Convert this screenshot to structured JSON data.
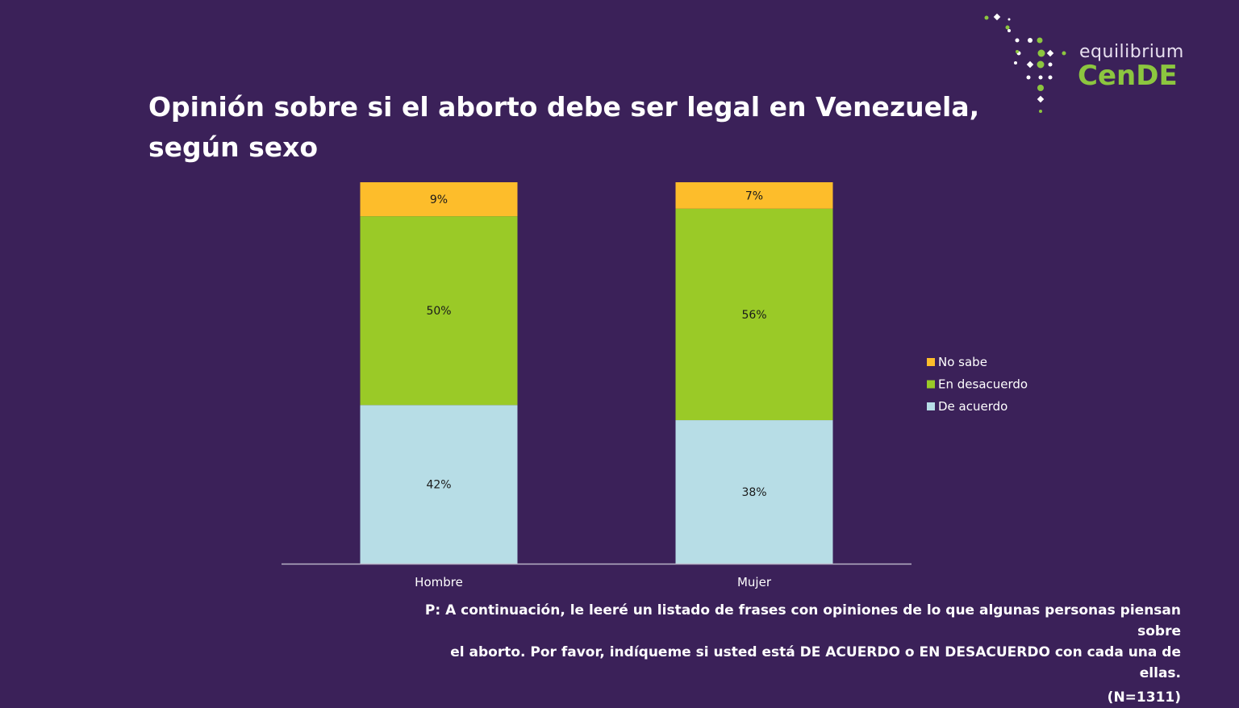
{
  "title_lines": [
    "Opinión sobre si el aborto debe ser legal en Venezuela,",
    "según sexo"
  ],
  "logo": {
    "word": "equilibrium",
    "brand": "CenDE",
    "colors": {
      "accent": "#8cc63f",
      "light": "#ffffff"
    }
  },
  "footnote": {
    "line1": "P: A continuación, le leeré un listado de frases con opiniones de lo que algunas personas piensan sobre",
    "line2": "el aborto. Por favor, indíqueme si usted está DE ACUERDO o EN DESACUERDO con cada una de ellas.",
    "sample": "(N=1311)"
  },
  "colors": {
    "background": "#3b2159"
  },
  "chart_data": {
    "type": "bar",
    "stacked": true,
    "categories": [
      "Hombre",
      "Mujer"
    ],
    "series": [
      {
        "name": "De acuerdo",
        "values": [
          42,
          38
        ],
        "labels": [
          "42%",
          "38%"
        ],
        "color": "#b7dde6"
      },
      {
        "name": "En desacuerdo",
        "values": [
          50,
          56
        ],
        "labels": [
          "50%",
          "56%"
        ],
        "color": "#9aca27"
      },
      {
        "name": "No sabe",
        "values": [
          9,
          7
        ],
        "labels": [
          "9%",
          "7%"
        ],
        "color": "#fdbd2b"
      }
    ],
    "legend_order": [
      "No sabe",
      "En desacuerdo",
      "De acuerdo"
    ],
    "legend_position": "right",
    "ylim": [
      0,
      101
    ],
    "grid": false
  }
}
